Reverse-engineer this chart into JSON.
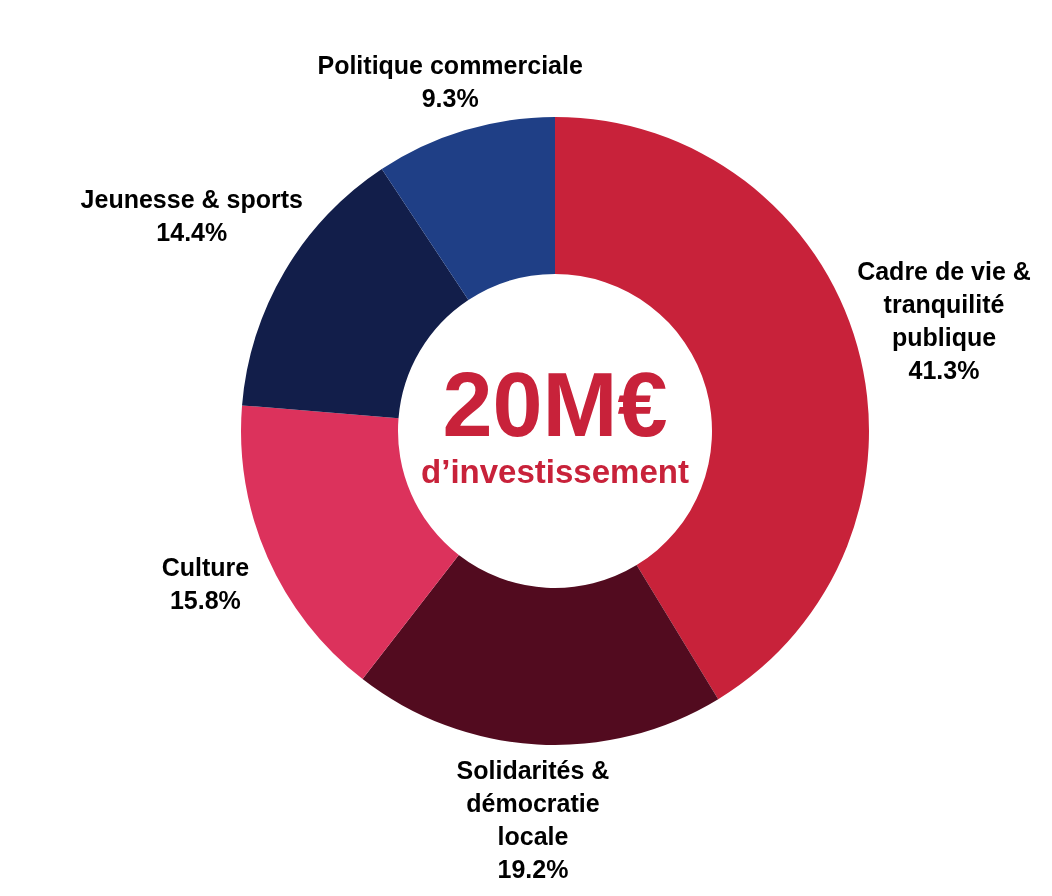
{
  "chart_data": {
    "type": "donut",
    "categories": [
      "Cadre de vie &\ntranquilité\npublique",
      "Solidarités &\ndémocratie\nlocale",
      "Culture",
      "Jeunesse & sports",
      "Politique commerciale"
    ],
    "values": [
      41.3,
      19.2,
      15.8,
      14.4,
      9.3
    ],
    "colors": [
      "#c8223a",
      "#520b1f",
      "#dc325c",
      "#121e4a",
      "#1f3f86"
    ],
    "value_labels": [
      "41.3%",
      "19.2%",
      "15.8%",
      "14.4%",
      "9.3%"
    ],
    "annotations": [
      "20M€",
      "d’investissement"
    ]
  }
}
